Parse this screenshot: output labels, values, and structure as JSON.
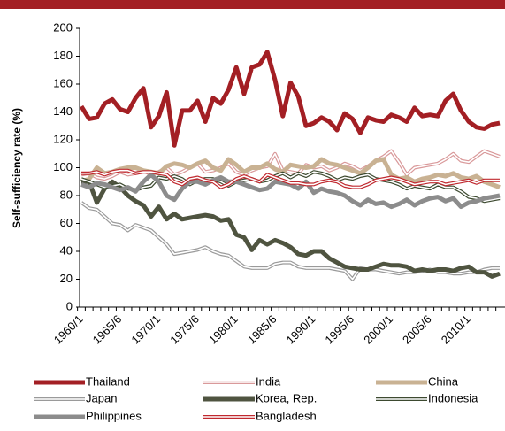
{
  "chart_data": {
    "type": "line",
    "y_label": "Self-sufficiency rate (%)",
    "categories": [
      "1960/1",
      null,
      null,
      null,
      null,
      "1965/6",
      null,
      null,
      null,
      null,
      "1970/1",
      null,
      null,
      null,
      null,
      "1975/6",
      null,
      null,
      null,
      null,
      "1980/1",
      null,
      null,
      null,
      null,
      "1985/6",
      null,
      null,
      null,
      null,
      "1990/1",
      null,
      null,
      null,
      null,
      "1995/6",
      null,
      null,
      null,
      null,
      "2000/1",
      null,
      null,
      null,
      null,
      "2005/6",
      null,
      null,
      null,
      null,
      "2010/1",
      null,
      null,
      null,
      null
    ],
    "ylim": [
      0,
      200
    ],
    "yticks": [
      0,
      20,
      40,
      60,
      80,
      100,
      120,
      140,
      160,
      180,
      200
    ],
    "series": [
      {
        "name": "Thailand",
        "color": "#a31f24",
        "style": "solid",
        "values": [
          144,
          135,
          136,
          146,
          149,
          142,
          140,
          150,
          157,
          129,
          137,
          154,
          116,
          141,
          141,
          148,
          133,
          150,
          146,
          156,
          172,
          153,
          172,
          174,
          183,
          163,
          137,
          161,
          151,
          130,
          132,
          136,
          133,
          127,
          139,
          135,
          125,
          136,
          134,
          133,
          138,
          136,
          133,
          143,
          137,
          138,
          137,
          148,
          153,
          141,
          133,
          129,
          128,
          131,
          132
        ]
      },
      {
        "name": "India",
        "color": "#d9999a",
        "style": "double",
        "values": [
          95,
          96,
          93,
          92,
          94,
          97,
          95,
          96,
          98,
          95,
          97,
          100,
          95,
          97,
          100,
          103,
          97,
          98,
          100,
          103,
          97,
          95,
          98,
          100,
          101,
          110,
          98,
          97,
          96,
          102,
          100,
          101,
          98,
          100,
          103,
          101,
          98,
          101,
          105,
          108,
          112,
          104,
          95,
          100,
          101,
          102,
          103,
          106,
          110,
          105,
          104,
          108,
          112,
          110,
          108
        ]
      },
      {
        "name": "China",
        "color": "#c9b293",
        "style": "solid",
        "values": [
          90,
          92,
          100,
          96,
          97,
          99,
          100,
          100,
          98,
          97,
          96,
          101,
          103,
          102,
          100,
          103,
          105,
          100,
          98,
          106,
          102,
          97,
          100,
          100,
          103,
          99,
          97,
          102,
          101,
          100,
          101,
          106,
          103,
          102,
          100,
          98,
          96,
          100,
          105,
          106,
          95,
          92,
          93,
          90,
          92,
          93,
          95,
          94,
          96,
          93,
          92,
          94,
          90,
          88,
          86
        ]
      },
      {
        "name": "Japan",
        "color": "#9a9a9a",
        "style": "double",
        "values": [
          75,
          71,
          70,
          65,
          60,
          59,
          55,
          59,
          57,
          55,
          50,
          45,
          38,
          39,
          40,
          41,
          43,
          40,
          38,
          37,
          33,
          29,
          28,
          28,
          28,
          31,
          32,
          32,
          29,
          28,
          28,
          28,
          28,
          27,
          26,
          20,
          28,
          27,
          27,
          26,
          25,
          24,
          25,
          25,
          26,
          27,
          25,
          25,
          24,
          24,
          25,
          25,
          27,
          28,
          28
        ]
      },
      {
        "name": "Korea, Rep.",
        "color": "#4f5440",
        "style": "solid",
        "values": [
          90,
          90,
          75,
          85,
          90,
          86,
          80,
          76,
          73,
          65,
          72,
          63,
          67,
          63,
          64,
          65,
          66,
          65,
          62,
          63,
          52,
          50,
          41,
          48,
          45,
          48,
          46,
          43,
          38,
          37,
          40,
          40,
          35,
          32,
          29,
          28,
          27,
          27,
          29,
          31,
          30,
          30,
          29,
          26,
          27,
          26,
          27,
          27,
          26,
          28,
          29,
          25,
          25,
          22,
          24
        ]
      },
      {
        "name": "Indonesia",
        "color": "#3d4a30",
        "style": "double",
        "values": [
          92,
          90,
          88,
          86,
          87,
          88,
          85,
          84,
          86,
          87,
          93,
          92,
          94,
          92,
          88,
          91,
          92,
          92,
          90,
          87,
          90,
          91,
          92,
          90,
          91,
          94,
          96,
          93,
          96,
          94,
          97,
          96,
          94,
          91,
          93,
          92,
          94,
          95,
          92,
          91,
          90,
          88,
          85,
          87,
          86,
          85,
          88,
          86,
          86,
          83,
          79,
          78,
          76,
          77,
          78
        ]
      },
      {
        "name": "Philippines",
        "color": "#8c8c8c",
        "style": "solid",
        "values": [
          88,
          86,
          89,
          88,
          86,
          84,
          86,
          83,
          90,
          95,
          90,
          80,
          77,
          85,
          90,
          90,
          88,
          91,
          93,
          90,
          90,
          88,
          86,
          84,
          85,
          90,
          89,
          88,
          85,
          90,
          82,
          85,
          83,
          82,
          80,
          76,
          73,
          77,
          74,
          75,
          72,
          74,
          77,
          73,
          76,
          78,
          79,
          76,
          78,
          72,
          75,
          76,
          78,
          79,
          80
        ]
      },
      {
        "name": "Bangladesh",
        "color": "#c0292f",
        "style": "double",
        "values": [
          96,
          96,
          97,
          95,
          97,
          98,
          98,
          96,
          97,
          97,
          96,
          95,
          90,
          88,
          92,
          93,
          91,
          90,
          86,
          88,
          92,
          94,
          92,
          90,
          95,
          93,
          91,
          89,
          89,
          88,
          88,
          90,
          91,
          90,
          87,
          86,
          86,
          88,
          91,
          92,
          93,
          92,
          90,
          88,
          89,
          90,
          90,
          88,
          89,
          90,
          91,
          89,
          91,
          91,
          91
        ]
      }
    ]
  }
}
